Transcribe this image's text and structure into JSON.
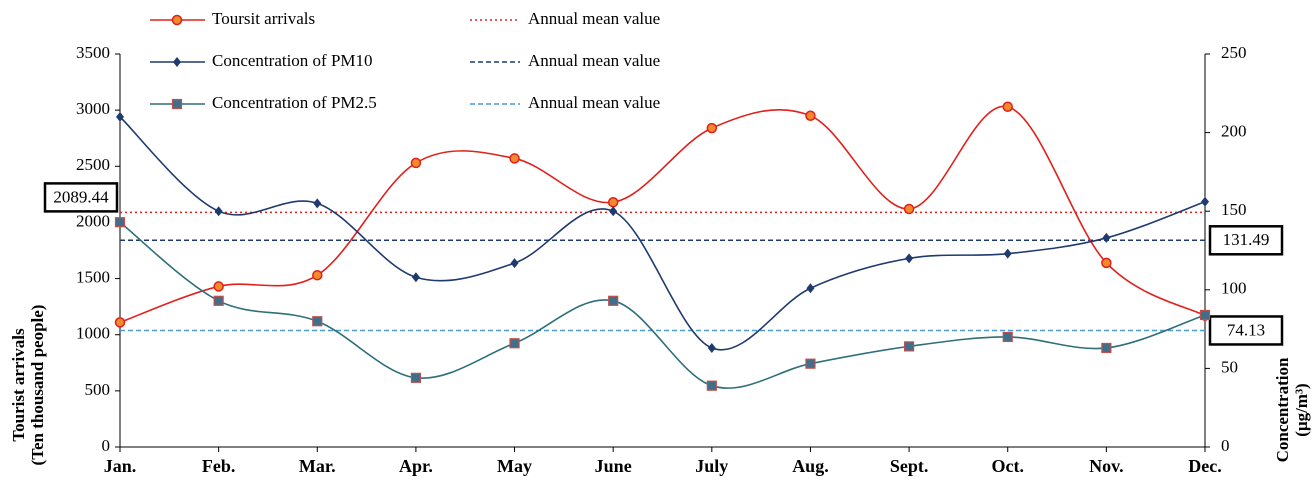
{
  "chart_data": {
    "type": "line",
    "categories": [
      "Jan.",
      "Feb.",
      "Mar.",
      "Apr.",
      "May",
      "June",
      "July",
      "Aug.",
      "Sept.",
      "Oct.",
      "Nov.",
      "Dec."
    ],
    "series": [
      {
        "name": "Toursit arrivals",
        "color": "#e0201b",
        "marker": "circle",
        "values": [
          1110,
          1430,
          1530,
          2530,
          2570,
          2180,
          2840,
          2950,
          2120,
          3030,
          1640,
          1170
        ]
      },
      {
        "name": "Concentration of PM10",
        "color": "#1f3a6e",
        "marker": "diamond",
        "axis": "y2",
        "values": [
          210,
          150,
          155,
          108,
          117,
          150,
          63,
          101,
          120,
          123,
          133,
          156
        ]
      },
      {
        "name": "Concentration of PM2.5",
        "color": "#2d6f7a",
        "marker": "square",
        "axis": "y2",
        "values": [
          143,
          93,
          80,
          44,
          66,
          93,
          39,
          53,
          64,
          70,
          63,
          84
        ]
      }
    ],
    "mean_lines": [
      {
        "name": "Annual mean value",
        "value": 2089.44,
        "color": "#e0201b",
        "dash": "2,3"
      },
      {
        "name": "Annual mean value",
        "value": 131.49,
        "color": "#1f3a6e",
        "dash": "5,3",
        "axis": "y2"
      },
      {
        "name": "Annual mean value",
        "value": 74.13,
        "color": "#4a9bd6",
        "dash": "5,3",
        "axis": "y2"
      }
    ],
    "ylabel": [
      "Tourist arrivals",
      "(Ten thousand people)"
    ],
    "y2label": [
      "Concentration",
      "(μg/m³)"
    ],
    "ylim": [
      0,
      3500
    ],
    "yticks": [
      0,
      500,
      1000,
      1500,
      2000,
      2500,
      3000,
      3500
    ],
    "y2lim": [
      0,
      250
    ],
    "y2ticks": [
      0,
      50,
      100,
      150,
      200,
      250
    ]
  }
}
